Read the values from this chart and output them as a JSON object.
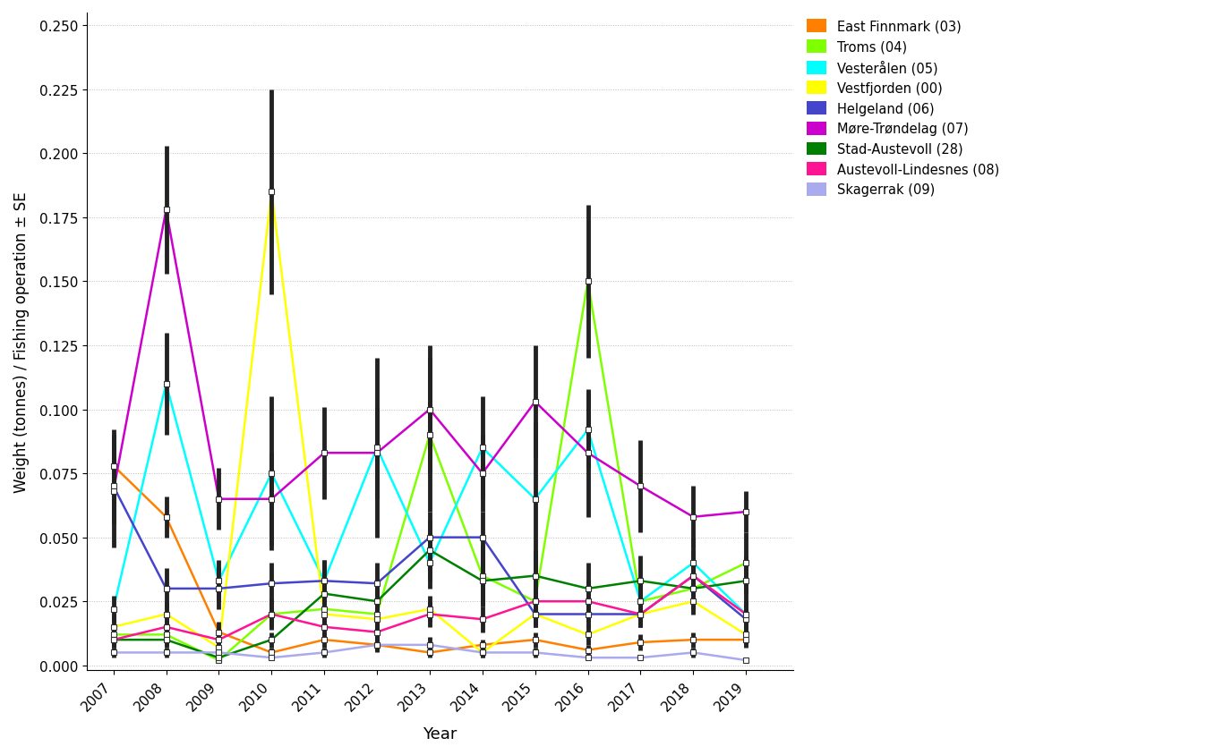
{
  "years": [
    2007,
    2008,
    2009,
    2010,
    2011,
    2012,
    2013,
    2014,
    2015,
    2016,
    2017,
    2018,
    2019
  ],
  "series": {
    "East Finnmark (03)": {
      "color": "#FF8000",
      "mean": [
        0.078,
        0.058,
        0.013,
        0.005,
        0.01,
        0.008,
        0.005,
        0.008,
        0.01,
        0.006,
        0.009,
        0.01,
        0.01
      ],
      "se": [
        0.014,
        0.008,
        0.004,
        0.002,
        0.003,
        0.002,
        0.002,
        0.002,
        0.003,
        0.002,
        0.003,
        0.003,
        0.003
      ]
    },
    "Troms (04)": {
      "color": "#80FF00",
      "mean": [
        0.012,
        0.012,
        0.002,
        0.02,
        0.022,
        0.02,
        0.09,
        0.035,
        0.025,
        0.15,
        0.025,
        0.03,
        0.04
      ],
      "se": [
        0.004,
        0.004,
        0.001,
        0.006,
        0.006,
        0.01,
        0.03,
        0.012,
        0.01,
        0.03,
        0.008,
        0.008,
        0.012
      ]
    },
    "Vesterålen (05)": {
      "color": "#00FFFF",
      "mean": [
        0.022,
        0.11,
        0.033,
        0.075,
        0.033,
        0.085,
        0.04,
        0.085,
        0.065,
        0.092,
        0.025,
        0.04,
        0.02
      ],
      "se": [
        0.005,
        0.02,
        0.008,
        0.03,
        0.008,
        0.035,
        0.01,
        0.02,
        0.03,
        0.015,
        0.008,
        0.01,
        0.005
      ]
    },
    "Vestfjorden (00)": {
      "color": "#FFFF00",
      "mean": [
        0.015,
        0.02,
        0.007,
        0.185,
        0.02,
        0.018,
        0.022,
        0.005,
        0.02,
        0.012,
        0.02,
        0.025,
        0.012
      ],
      "se": [
        0.005,
        0.005,
        0.002,
        0.04,
        0.005,
        0.005,
        0.005,
        0.002,
        0.005,
        0.004,
        0.005,
        0.005,
        0.004
      ]
    },
    "Helgeland (06)": {
      "color": "#4444CC",
      "mean": [
        0.07,
        0.03,
        0.03,
        0.032,
        0.033,
        0.032,
        0.05,
        0.05,
        0.02,
        0.02,
        0.02,
        0.035,
        0.018
      ],
      "se": [
        0.015,
        0.008,
        0.008,
        0.008,
        0.008,
        0.008,
        0.01,
        0.01,
        0.005,
        0.005,
        0.005,
        0.01,
        0.005
      ]
    },
    "Møre-Trøndelag (07)": {
      "color": "#CC00CC",
      "mean": [
        0.068,
        0.178,
        0.065,
        0.065,
        0.083,
        0.083,
        0.1,
        0.075,
        0.103,
        0.083,
        0.07,
        0.058,
        0.06
      ],
      "se": [
        0.022,
        0.025,
        0.012,
        0.018,
        0.018,
        0.018,
        0.025,
        0.015,
        0.022,
        0.025,
        0.018,
        0.012,
        0.008
      ]
    },
    "Stad-Austevoll (28)": {
      "color": "#008000",
      "mean": [
        0.01,
        0.01,
        0.003,
        0.01,
        0.028,
        0.025,
        0.045,
        0.033,
        0.035,
        0.03,
        0.033,
        0.03,
        0.033
      ],
      "se": [
        0.003,
        0.003,
        0.001,
        0.003,
        0.008,
        0.008,
        0.012,
        0.01,
        0.01,
        0.01,
        0.01,
        0.008,
        0.01
      ]
    },
    "Austevoll-Lindesnes (08)": {
      "color": "#FF1493",
      "mean": [
        0.01,
        0.015,
        0.01,
        0.02,
        0.015,
        0.013,
        0.02,
        0.018,
        0.025,
        0.025,
        0.02,
        0.035,
        0.02
      ],
      "se": [
        0.003,
        0.005,
        0.003,
        0.005,
        0.004,
        0.004,
        0.005,
        0.005,
        0.008,
        0.008,
        0.005,
        0.01,
        0.005
      ]
    },
    "Skagerrak (09)": {
      "color": "#AAAAEE",
      "mean": [
        0.005,
        0.005,
        0.005,
        0.003,
        0.005,
        0.008,
        0.008,
        0.005,
        0.005,
        0.003,
        0.003,
        0.005,
        0.002
      ],
      "se": [
        0.002,
        0.002,
        0.002,
        0.001,
        0.002,
        0.003,
        0.003,
        0.002,
        0.002,
        0.001,
        0.001,
        0.002,
        0.001
      ]
    }
  },
  "ylabel": "Weight (tonnes) / Fishing operation ± SE",
  "xlabel": "Year",
  "ylim": [
    -0.002,
    0.255
  ],
  "yticks": [
    0.0,
    0.025,
    0.05,
    0.075,
    0.1,
    0.125,
    0.15,
    0.175,
    0.2,
    0.225,
    0.25
  ],
  "background_color": "#FFFFFF",
  "grid_color": "#BBBBBB",
  "eb_color": "#222222",
  "eb_linewidth": 3.5,
  "marker_size": 4.5,
  "line_width": 1.8
}
